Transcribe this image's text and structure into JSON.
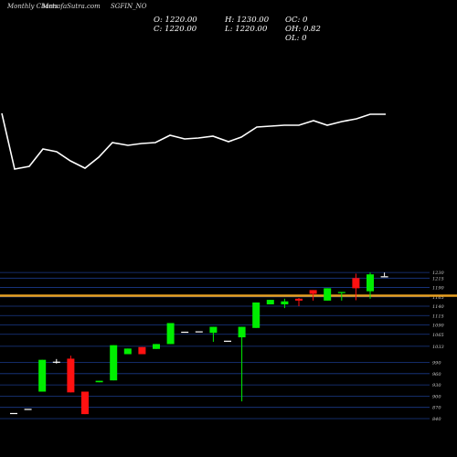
{
  "header": {
    "title": "Monthly Charts",
    "source": "MunafaSutra.com",
    "symbol": "SGFIN_NO"
  },
  "ohlc": {
    "o": "O: 1220.00",
    "h": "H: 1230.00",
    "c": "C: 1220.00",
    "l": "L: 1220.00",
    "oc": "OC: 0",
    "oh": "OH: 0.82",
    "ol": "OL: 0"
  },
  "colors": {
    "up": "#00ee00",
    "down": "#ff1111",
    "neutral": "#ffffff",
    "grid": "#1a3a8a",
    "line": "#ffffff",
    "hline": "#e8a020"
  },
  "chart_data": {
    "type": "candlestick",
    "title": "Monthly Charts",
    "ylim": [
      840,
      1245
    ],
    "yticks": [
      840,
      870,
      900,
      930,
      960,
      990,
      1033,
      1065,
      1090,
      1115,
      1140,
      1165,
      1190,
      1215,
      1230
    ],
    "horizontal_line": 1168,
    "candles": [
      {
        "o": 855,
        "h": 855,
        "l": 855,
        "c": 855
      },
      {
        "o": 866,
        "h": 866,
        "l": 866,
        "c": 866
      },
      {
        "o": 912,
        "h": 997,
        "l": 912,
        "c": 997
      },
      {
        "o": 992,
        "h": 999,
        "l": 987,
        "c": 992
      },
      {
        "o": 1000,
        "h": 1008,
        "l": 910,
        "c": 910
      },
      {
        "o": 912,
        "h": 912,
        "l": 852,
        "c": 852
      },
      {
        "o": 937,
        "h": 941,
        "l": 937,
        "c": 941
      },
      {
        "o": 942,
        "h": 1036,
        "l": 942,
        "c": 1036
      },
      {
        "o": 1012,
        "h": 1027,
        "l": 1012,
        "c": 1027
      },
      {
        "o": 1031,
        "h": 1031,
        "l": 1012,
        "c": 1012
      },
      {
        "o": 1026,
        "h": 1039,
        "l": 1026,
        "c": 1039
      },
      {
        "o": 1039,
        "h": 1095,
        "l": 1039,
        "c": 1095
      },
      {
        "o": 1072,
        "h": 1072,
        "l": 1072,
        "c": 1072
      },
      {
        "o": 1073,
        "h": 1073,
        "l": 1073,
        "c": 1073
      },
      {
        "o": 1069,
        "h": 1085,
        "l": 1045,
        "c": 1085
      },
      {
        "o": 1048,
        "h": 1048,
        "l": 1048,
        "c": 1048
      },
      {
        "o": 1057,
        "h": 1085,
        "l": 886,
        "c": 1085
      },
      {
        "o": 1082,
        "h": 1150,
        "l": 1082,
        "c": 1150
      },
      {
        "o": 1145,
        "h": 1157,
        "l": 1145,
        "c": 1157
      },
      {
        "o": 1145,
        "h": 1160,
        "l": 1135,
        "c": 1153
      },
      {
        "o": 1160,
        "h": 1162,
        "l": 1140,
        "c": 1155
      },
      {
        "o": 1183,
        "h": 1183,
        "l": 1155,
        "c": 1173
      },
      {
        "o": 1155,
        "h": 1188,
        "l": 1155,
        "c": 1188
      },
      {
        "o": 1175,
        "h": 1178,
        "l": 1155,
        "c": 1178
      },
      {
        "o": 1215,
        "h": 1227,
        "l": 1156,
        "c": 1188
      },
      {
        "o": 1180,
        "h": 1230,
        "l": 1160,
        "c": 1225
      },
      {
        "o": 1220,
        "h": 1230,
        "l": 1220,
        "c": 1220
      }
    ],
    "line_series": [
      {
        "x": 2,
        "y": 124
      },
      {
        "x": 16,
        "y": 185
      },
      {
        "x": 32,
        "y": 182
      },
      {
        "x": 47,
        "y": 163
      },
      {
        "x": 62,
        "y": 166
      },
      {
        "x": 77,
        "y": 176
      },
      {
        "x": 93,
        "y": 184
      },
      {
        "x": 108,
        "y": 172
      },
      {
        "x": 123,
        "y": 156
      },
      {
        "x": 140,
        "y": 159
      },
      {
        "x": 155,
        "y": 157
      },
      {
        "x": 170,
        "y": 156
      },
      {
        "x": 186,
        "y": 148
      },
      {
        "x": 202,
        "y": 152
      },
      {
        "x": 217,
        "y": 151
      },
      {
        "x": 233,
        "y": 149
      },
      {
        "x": 250,
        "y": 155
      },
      {
        "x": 264,
        "y": 150
      },
      {
        "x": 281,
        "y": 139
      },
      {
        "x": 296,
        "y": 138
      },
      {
        "x": 311,
        "y": 137
      },
      {
        "x": 327,
        "y": 137
      },
      {
        "x": 343,
        "y": 132
      },
      {
        "x": 358,
        "y": 137
      },
      {
        "x": 374,
        "y": 133
      },
      {
        "x": 390,
        "y": 130
      },
      {
        "x": 405,
        "y": 125
      },
      {
        "x": 422,
        "y": 125
      }
    ]
  }
}
